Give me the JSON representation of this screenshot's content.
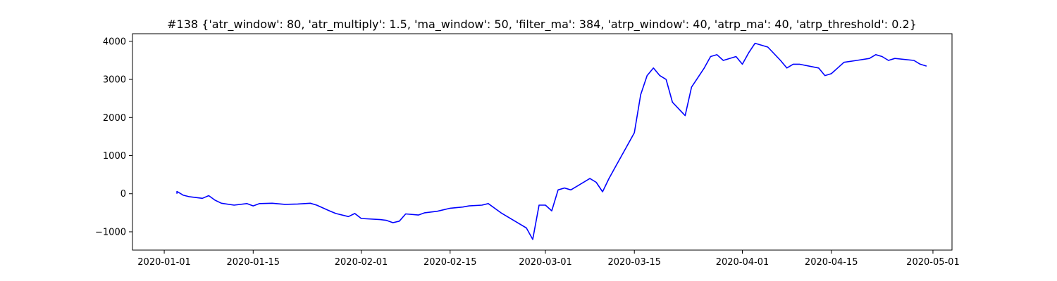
{
  "chart_data": {
    "type": "line",
    "title": "#138 {'atr_window': 80, 'atr_multiply': 1.5, 'ma_window': 50, 'filter_ma': 384, 'atrp_window': 40, 'atrp_ma': 40, 'atrp_threshold': 0.2}",
    "xlabel": "",
    "ylabel": "",
    "x_axis_type": "date",
    "xlim": [
      "2019-12-27",
      "2020-05-04"
    ],
    "ylim": [
      -1480,
      4200
    ],
    "grid": false,
    "line_color": "#0000ff",
    "x_ticks": [
      "2020-01-01",
      "2020-01-15",
      "2020-02-01",
      "2020-02-15",
      "2020-03-01",
      "2020-03-15",
      "2020-04-01",
      "2020-04-15",
      "2020-05-01"
    ],
    "y_ticks": [
      "-1000",
      "0",
      "1000",
      "2000",
      "3000",
      "4000"
    ],
    "series": [
      {
        "name": "",
        "x": [
          "2020-01-03",
          "2020-01-03",
          "2020-01-04",
          "2020-01-05",
          "2020-01-07",
          "2020-01-08",
          "2020-01-09",
          "2020-01-10",
          "2020-01-12",
          "2020-01-14",
          "2020-01-15",
          "2020-01-16",
          "2020-01-18",
          "2020-01-20",
          "2020-01-22",
          "2020-01-24",
          "2020-01-25",
          "2020-01-27",
          "2020-01-28",
          "2020-01-30",
          "2020-01-31",
          "2020-02-01",
          "2020-02-04",
          "2020-02-05",
          "2020-02-06",
          "2020-02-07",
          "2020-02-08",
          "2020-02-10",
          "2020-02-11",
          "2020-02-13",
          "2020-02-15",
          "2020-02-17",
          "2020-02-18",
          "2020-02-20",
          "2020-02-21",
          "2020-02-23",
          "2020-02-24",
          "2020-02-25",
          "2020-02-26",
          "2020-02-27",
          "2020-02-28",
          "2020-02-29",
          "2020-03-01",
          "2020-03-02",
          "2020-03-03",
          "2020-03-04",
          "2020-03-05",
          "2020-03-06",
          "2020-03-08",
          "2020-03-09",
          "2020-03-10",
          "2020-03-11",
          "2020-03-12",
          "2020-03-14",
          "2020-03-15",
          "2020-03-16",
          "2020-03-17",
          "2020-03-18",
          "2020-03-19",
          "2020-03-20",
          "2020-03-21",
          "2020-03-23",
          "2020-03-24",
          "2020-03-25",
          "2020-03-26",
          "2020-03-27",
          "2020-03-28",
          "2020-03-29",
          "2020-03-31",
          "2020-04-01",
          "2020-04-02",
          "2020-04-03",
          "2020-04-05",
          "2020-04-07",
          "2020-04-08",
          "2020-04-09",
          "2020-04-10",
          "2020-04-13",
          "2020-04-14",
          "2020-04-15",
          "2020-04-16",
          "2020-04-17",
          "2020-04-19",
          "2020-04-21",
          "2020-04-22",
          "2020-04-23",
          "2020-04-24",
          "2020-04-25",
          "2020-04-28",
          "2020-04-29",
          "2020-04-30"
        ],
        "y": [
          0,
          60,
          -40,
          -80,
          -120,
          -50,
          -170,
          -250,
          -300,
          -260,
          -320,
          -260,
          -250,
          -280,
          -270,
          -250,
          -300,
          -450,
          -520,
          -600,
          -520,
          -650,
          -680,
          -700,
          -760,
          -720,
          -530,
          -560,
          -500,
          -460,
          -380,
          -350,
          -320,
          -300,
          -260,
          -500,
          -600,
          -700,
          -800,
          -900,
          -1200,
          -300,
          -300,
          -450,
          100,
          150,
          100,
          200,
          400,
          300,
          50,
          400,
          700,
          1300,
          1600,
          2600,
          3100,
          3300,
          3100,
          3000,
          2400,
          2050,
          2800,
          3050,
          3300,
          3600,
          3650,
          3500,
          3600,
          3400,
          3700,
          3950,
          3850,
          3500,
          3300,
          3400,
          3400,
          3300,
          3100,
          3150,
          3300,
          3450,
          3500,
          3550,
          3650,
          3600,
          3500,
          3550,
          3500,
          3400,
          3350
        ]
      }
    ]
  }
}
